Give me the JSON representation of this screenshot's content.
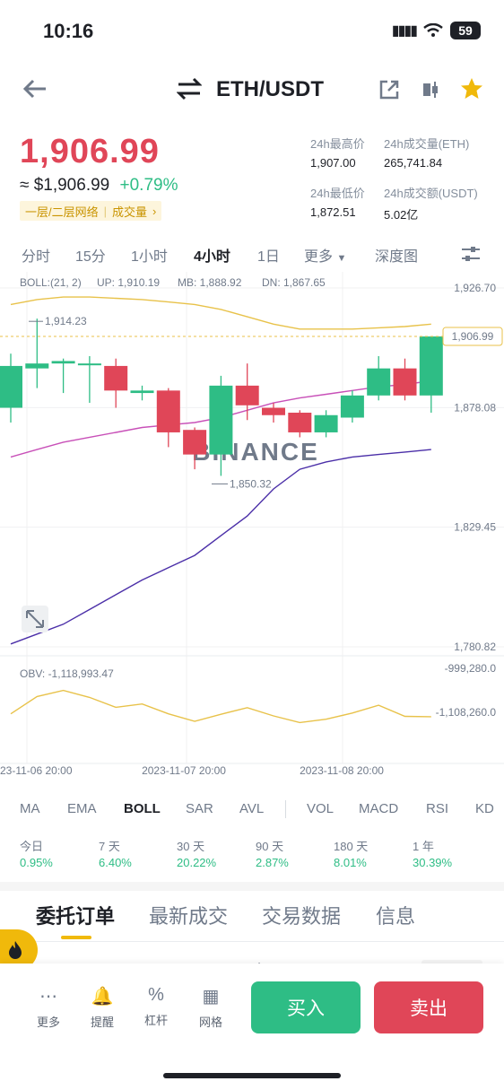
{
  "status": {
    "time": "10:16",
    "battery": "59"
  },
  "header": {
    "pair": "ETH/USDT"
  },
  "price": {
    "last": "1,906.99",
    "approx": "≈ $1,906.99",
    "change": "+0.79%",
    "tag_network": "一层/二层网络",
    "tag_volume": "成交量"
  },
  "stats": {
    "high_label": "24h最高价",
    "high": "1,907.00",
    "vol_eth_label": "24h成交量(ETH)",
    "vol_eth": "265,741.84",
    "low_label": "24h最低价",
    "low": "1,872.51",
    "vol_usdt_label": "24h成交额(USDT)",
    "vol_usdt": "5.02亿"
  },
  "timeframes": [
    "分时",
    "15分",
    "1小时",
    "4小时",
    "1日",
    "更多",
    "深度图"
  ],
  "active_timeframe": "4小时",
  "chart_legend": {
    "boll": "BOLL:(21, 2)",
    "up": "UP: 1,910.19",
    "mb": "MB: 1,888.92",
    "dn": "DN: 1,867.65",
    "obv": "OBV: -1,118,993.47"
  },
  "chart_data": {
    "type": "candlestick",
    "y_ticks": [
      "1,926.70",
      "1,878.08",
      "1,829.45",
      "1,780.82"
    ],
    "current_price": "1,906.99",
    "x_ticks": [
      "23-11-06 20:00",
      "2023-11-07 20:00",
      "2023-11-08 20:00"
    ],
    "annotations": {
      "high": "1,914.23",
      "low": "1,850.32"
    },
    "candles": [
      {
        "o": 1878,
        "c": 1895,
        "h": 1900,
        "l": 1872
      },
      {
        "o": 1894,
        "c": 1896,
        "h": 1914.23,
        "l": 1886
      },
      {
        "o": 1896,
        "c": 1897,
        "h": 1898,
        "l": 1884
      },
      {
        "o": 1896,
        "c": 1896,
        "h": 1899,
        "l": 1880
      },
      {
        "o": 1895,
        "c": 1885,
        "h": 1898,
        "l": 1878
      },
      {
        "o": 1884,
        "c": 1885,
        "h": 1887,
        "l": 1881
      },
      {
        "o": 1885,
        "c": 1868,
        "h": 1886,
        "l": 1862
      },
      {
        "o": 1869,
        "c": 1859,
        "h": 1870,
        "l": 1853
      },
      {
        "o": 1859,
        "c": 1887,
        "h": 1891,
        "l": 1850.32
      },
      {
        "o": 1887,
        "c": 1879,
        "h": 1896,
        "l": 1873
      },
      {
        "o": 1878,
        "c": 1875,
        "h": 1880,
        "l": 1872
      },
      {
        "o": 1876,
        "c": 1868,
        "h": 1877,
        "l": 1866
      },
      {
        "o": 1868,
        "c": 1875,
        "h": 1877,
        "l": 1866
      },
      {
        "o": 1874,
        "c": 1883,
        "h": 1885,
        "l": 1872
      },
      {
        "o": 1883,
        "c": 1894,
        "h": 1899,
        "l": 1881
      },
      {
        "o": 1894,
        "c": 1883,
        "h": 1898,
        "l": 1881
      },
      {
        "o": 1883,
        "c": 1906.99,
        "h": 1907,
        "l": 1876
      }
    ],
    "obv_ticks": [
      "-999,280.0",
      "-1,108,260.0"
    ]
  },
  "indicators": [
    "MA",
    "EMA",
    "BOLL",
    "SAR",
    "AVL",
    "VOL",
    "MACD",
    "RSI",
    "KD"
  ],
  "active_indicator": "BOLL",
  "performance": [
    {
      "label": "今日",
      "value": "0.95%"
    },
    {
      "label": "7 天",
      "value": "6.40%"
    },
    {
      "label": "30 天",
      "value": "20.22%"
    },
    {
      "label": "90 天",
      "value": "2.87%"
    },
    {
      "label": "180 天",
      "value": "8.01%"
    },
    {
      "label": "1 年",
      "value": "30.39%"
    }
  ],
  "tabs": [
    "委托订单",
    "最新成交",
    "交易数据",
    "信息"
  ],
  "order_peek": {
    "sell": "卖"
  },
  "bottom_nav": [
    {
      "label": "更多",
      "icon": "more-icon"
    },
    {
      "label": "提醒",
      "icon": "bell-icon"
    },
    {
      "label": "杠杆",
      "icon": "leverage-icon"
    },
    {
      "label": "网格",
      "icon": "grid-icon"
    }
  ],
  "actions": {
    "buy": "买入",
    "sell": "卖出"
  },
  "watermark": "BINANCE",
  "colors": {
    "up": "#2ebd85",
    "down": "#e04658",
    "accent": "#f0b90b",
    "mb": "#c850b8",
    "dn": "#4b2fa8"
  }
}
